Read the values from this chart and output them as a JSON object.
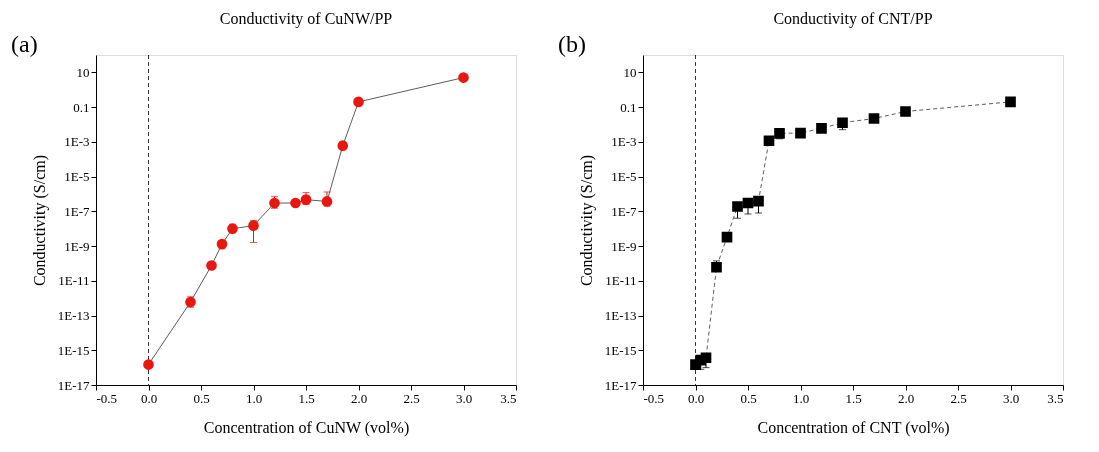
{
  "chart_data": [
    {
      "type": "line",
      "title": "Conductivity of CuNW/PP",
      "xlabel": "Concentration of CuNW (vol%)",
      "ylabel": "Conductivity (S/cm)",
      "annotations": [
        "(a)"
      ],
      "log": "y",
      "grid": false,
      "marker": "circle",
      "line_style": "solid",
      "xlim": [
        -0.5,
        3.5
      ],
      "xticks": [
        -0.5,
        {
          "value": 0,
          "label": "0.0"
        },
        0.5,
        {
          "value": 1,
          "label": "1.0"
        },
        1.5,
        {
          "value": 2,
          "label": "2.0"
        },
        2.5,
        {
          "value": 3,
          "label": "3.0"
        },
        3.5
      ],
      "ylim": [
        1e-17,
        100
      ],
      "yticks": [
        {
          "value": 1e-17,
          "label": "1E-17"
        },
        {
          "value": 1e-15,
          "label": "1E-15"
        },
        {
          "value": 1e-13,
          "label": "1E-13"
        },
        {
          "value": 1e-11,
          "label": "1E-11"
        },
        {
          "value": 1e-09,
          "label": "1E-9"
        },
        {
          "value": 1e-07,
          "label": "1E-7"
        },
        {
          "value": 1e-05,
          "label": "1E-5"
        },
        {
          "value": 0.001,
          "label": "1E-3"
        },
        0.1,
        10
      ],
      "ref_lines": [
        {
          "axis": "x",
          "value": 0,
          "line_style": "dashed",
          "color": "#000000"
        }
      ],
      "series": [
        {
          "color": "#e8170f",
          "x": [
            0.0,
            0.4,
            0.6,
            0.7,
            0.8,
            1.0,
            1.2,
            1.4,
            1.5,
            1.7,
            1.85,
            2.0,
            3.0
          ],
          "values": [
            1.5e-16,
            6e-13,
            7.6e-11,
            1.3e-09,
            1e-08,
            1.5e-08,
            3e-07,
            3e-07,
            4.7e-07,
            3.7e-07,
            0.0006,
            0.2,
            5
          ],
          "errors": [
            null,
            [
              3e-13,
              1.2e-12
            ],
            null,
            [
              7e-10,
              2e-09
            ],
            [
              6e-09,
              1.8e-08
            ],
            [
              1.6e-09,
              3e-08
            ],
            [
              1.5e-07,
              7e-07
            ],
            null,
            [
              2.5e-07,
              1.2e-06
            ],
            [
              2e-07,
              1.3e-06
            ],
            [
              0.0004,
              0.001
            ],
            null,
            null
          ]
        }
      ]
    },
    {
      "type": "line",
      "title": "Conductivity of CNT/PP",
      "xlabel": "Concentration of CNT (vol%)",
      "ylabel": "Conductivity (S/cm)",
      "annotations": [
        "(b)"
      ],
      "log": "y",
      "grid": false,
      "marker": "square",
      "line_style": "dashed",
      "xlim": [
        -0.5,
        3.5
      ],
      "xticks": [
        -0.5,
        {
          "value": 0,
          "label": "0.0"
        },
        0.5,
        {
          "value": 1,
          "label": "1.0"
        },
        1.5,
        {
          "value": 2,
          "label": "2.0"
        },
        2.5,
        {
          "value": 3,
          "label": "3.0"
        },
        3.5
      ],
      "ylim": [
        1e-17,
        100
      ],
      "yticks": [
        {
          "value": 1e-17,
          "label": "1E-17"
        },
        {
          "value": 1e-15,
          "label": "1E-15"
        },
        {
          "value": 1e-13,
          "label": "1E-13"
        },
        {
          "value": 1e-11,
          "label": "1E-11"
        },
        {
          "value": 1e-09,
          "label": "1E-9"
        },
        {
          "value": 1e-07,
          "label": "1E-7"
        },
        {
          "value": 1e-05,
          "label": "1E-5"
        },
        {
          "value": 0.001,
          "label": "1E-3"
        },
        0.1,
        10
      ],
      "ref_lines": [
        {
          "axis": "x",
          "value": 0,
          "line_style": "dashed",
          "color": "#000000"
        }
      ],
      "series": [
        {
          "color": "#000000",
          "x": [
            0.0,
            0.05,
            0.1,
            0.2,
            0.3,
            0.4,
            0.5,
            0.6,
            0.7,
            0.8,
            1.0,
            1.2,
            1.4,
            1.7,
            2.0,
            3.0
          ],
          "values": [
            1.5e-16,
            2.7e-16,
            3.7e-16,
            6e-11,
            3.3e-09,
            1.9e-07,
            3e-07,
            3.9e-07,
            0.00115,
            0.0031,
            0.0032,
            0.006,
            0.0126,
            0.022,
            0.056,
            0.2
          ],
          "errors": [
            null,
            [
              8e-17,
              4e-16
            ],
            [
              1e-16,
              5e-16
            ],
            [
              4e-11,
              1.4e-10
            ],
            null,
            [
              4e-08,
              3e-07
            ],
            [
              7e-08,
              4e-07
            ],
            [
              8e-08,
              3.9e-07
            ],
            null,
            [
              0.0015,
              0.0031
            ],
            null,
            null,
            [
              0.005,
              0.02
            ],
            null,
            null,
            null
          ]
        }
      ]
    }
  ]
}
